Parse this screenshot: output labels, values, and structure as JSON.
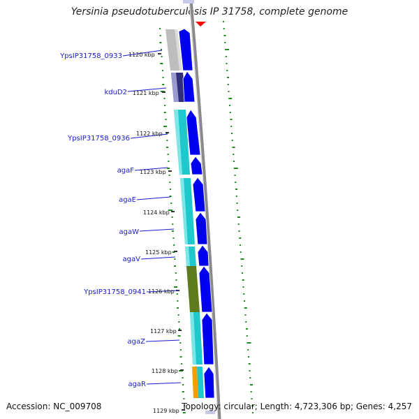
{
  "title": "Yersinia pseudotuberculosis IP 31758, complete genome",
  "footer": {
    "accession": "Accession: NC_009708",
    "topology": "Topology: circular; Length: 4,723,306 bp; Genes: 4,257"
  },
  "scale_labels": [
    "1120 kbp",
    "1121 kbp",
    "1122 kbp",
    "1123 kbp",
    "1124 kbp",
    "1125 kbp",
    "1126 kbp",
    "1127 kbp",
    "1128 kbp",
    "1129 kbp"
  ],
  "gene_labels": [
    "YpsIP31758_0933",
    "kduD2",
    "YpsIP31758_0936",
    "agaF",
    "agaE",
    "agaW",
    "agaV",
    "YpsIP31758_0941",
    "agaZ",
    "agaR"
  ],
  "colors": {
    "arrow_blue": "#0000ee",
    "cyan_block": "#1fc8cc",
    "olive_block": "#5e7a1e",
    "grey_block": "#bdbdbd",
    "navy_block": "#30307a",
    "orange_block": "#f2a000",
    "gc_dots": "#1e8a1e",
    "backbone": "#8a8a8a",
    "label": "#1a1acc",
    "marker": "#ff0000"
  }
}
